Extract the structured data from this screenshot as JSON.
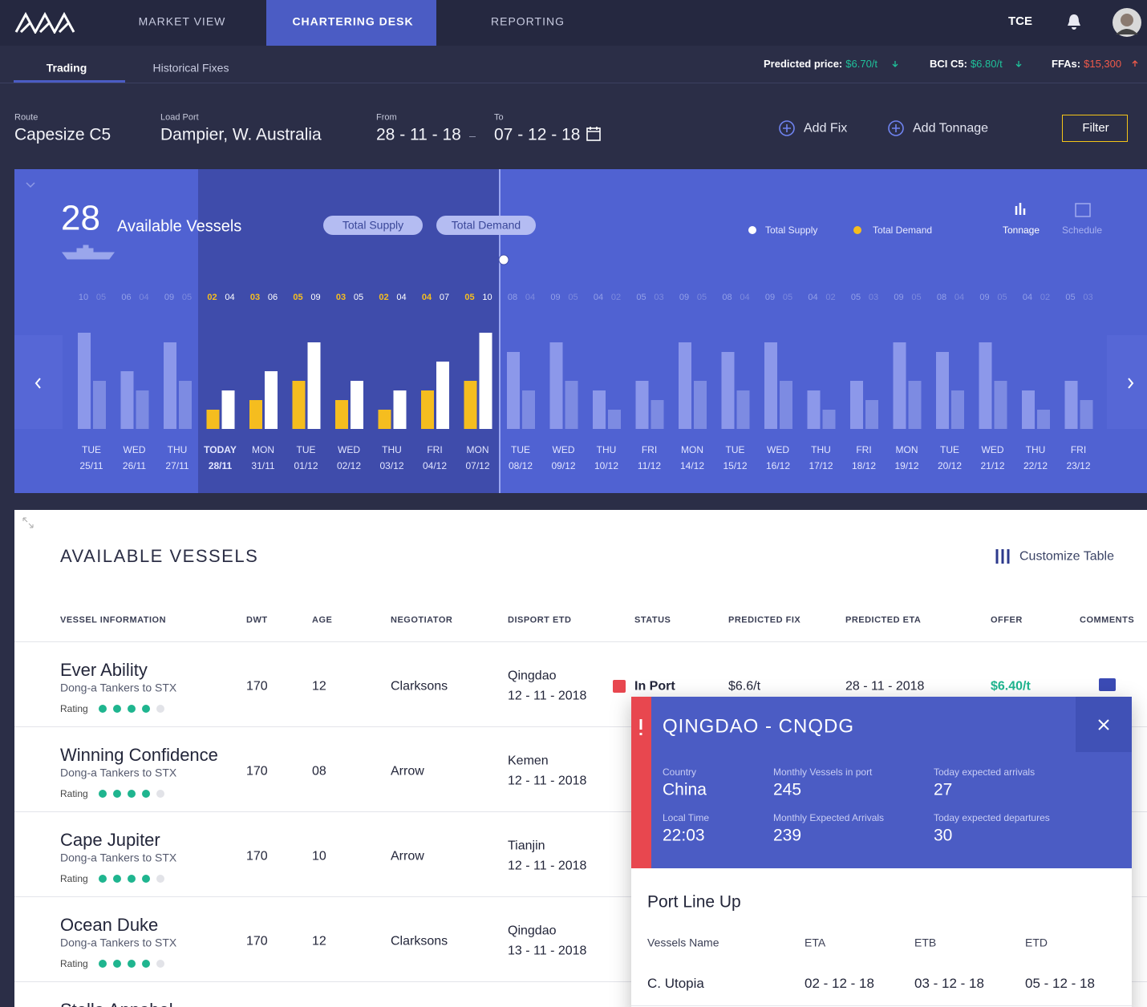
{
  "nav": {
    "tabs": [
      "MARKET VIEW",
      "CHARTERING DESK",
      "REPORTING"
    ],
    "tce": "TCE"
  },
  "subnav": {
    "tabs": [
      "Trading",
      "Historical Fixes"
    ],
    "prices": [
      {
        "label": "Predicted price:",
        "value": "$6.70/t"
      },
      {
        "label": "BCI C5:",
        "value": "$6.80/t"
      },
      {
        "label": "FFAs:",
        "value": "$15,300"
      }
    ]
  },
  "filters": {
    "route": {
      "label": "Route",
      "value": "Capesize C5"
    },
    "load_port": {
      "label": "Load Port",
      "value": "Dampier, W. Australia"
    },
    "from": {
      "label": "From",
      "value": "28 - 11 - 18"
    },
    "to": {
      "label": "To",
      "value": "07 - 12 - 18"
    },
    "add_fix": "Add Fix",
    "add_tonnage": "Add Tonnage",
    "filter": "Filter"
  },
  "supply_panel": {
    "count": "28",
    "count_label": "Available Vessels",
    "views": [
      "Tonnage",
      "Schedule"
    ],
    "chart": {
      "type": "grouped-bar",
      "categories": [
        "TUE",
        "WED",
        "THU",
        "TODAY",
        "MON",
        "TUE",
        "WED",
        "THU",
        "FRI",
        "MON",
        "TUE",
        "WED",
        "THU",
        "FRI",
        "MON",
        "TUE",
        "WED",
        "THU",
        "FRI",
        "MON",
        "TUE",
        "WED",
        "THU",
        "FRI"
      ],
      "dates": [
        "25/11",
        "26/11",
        "27/11",
        "28/11",
        "31/11",
        "01/12",
        "02/12",
        "03/12",
        "04/12",
        "07/12",
        "08/12",
        "09/12",
        "10/12",
        "11/12",
        "14/12",
        "15/12",
        "16/12",
        "17/12",
        "18/12",
        "19/12",
        "20/12",
        "21/12",
        "22/12",
        "23/12"
      ],
      "series": [
        {
          "name": "Total Supply",
          "color": "#ffffff",
          "values": [
            5,
            4,
            5,
            4,
            6,
            9,
            5,
            4,
            7,
            10,
            4,
            5,
            2,
            3,
            5,
            4,
            5,
            2,
            3,
            5,
            4,
            5,
            2,
            3
          ],
          "value_labels": [
            "05",
            "04",
            "05",
            "04",
            "06",
            "09",
            "05",
            "04",
            "07",
            "10",
            "04",
            "05",
            "02",
            "03",
            "05",
            "04",
            "05",
            "02",
            "03",
            "05",
            "04",
            "05",
            "02",
            "03"
          ]
        },
        {
          "name": "Total Demand",
          "color": "#f5bd1f",
          "values": [
            10,
            6,
            9,
            2,
            3,
            5,
            3,
            2,
            4,
            5,
            8,
            9,
            4,
            5,
            9,
            8,
            9,
            4,
            5,
            9,
            8,
            9,
            4,
            5
          ],
          "value_labels": [
            "10",
            "06",
            "09",
            "02",
            "03",
            "05",
            "03",
            "02",
            "04",
            "05",
            "08",
            "09",
            "04",
            "05",
            "09",
            "08",
            "09",
            "04",
            "05",
            "09",
            "08",
            "09",
            "04",
            "05"
          ]
        }
      ]
    }
  },
  "table": {
    "title": "AVAILABLE VESSELS",
    "customize": "Customize Table",
    "rating_label": "Rating",
    "columns": [
      "VESSEL INFORMATION",
      "DWT",
      "AGE",
      "NEGOTIATOR",
      "DISPORT ETD",
      "STATUS",
      "PREDICTED FIX",
      "PREDICTED ETA",
      "OFFER",
      "COMMENTS"
    ],
    "rows": [
      {
        "name": "Ever Ability",
        "owner": "Dong-a Tankers to STX",
        "rating": 4,
        "dwt": "170",
        "age": "12",
        "negotiator": "Clarksons",
        "disport": "Qingdao",
        "etd": "12 - 11 - 2018",
        "status": "In Port",
        "predicted_fix": "$6.6/t",
        "predicted_eta": "28 - 11 - 2018",
        "offer": "$6.40/t"
      },
      {
        "name": "Winning Confidence",
        "owner": "Dong-a Tankers to STX",
        "rating": 4,
        "dwt": "170",
        "age": "08",
        "negotiator": "Arrow",
        "disport": "Kemen",
        "etd": "12 - 11 - 2018"
      },
      {
        "name": "Cape Jupiter",
        "owner": "Dong-a Tankers to STX",
        "rating": 4,
        "dwt": "170",
        "age": "10",
        "negotiator": "Arrow",
        "disport": "Tianjin",
        "etd": "12 - 11 - 2018"
      },
      {
        "name": "Ocean Duke",
        "owner": "Dong-a Tankers to STX",
        "rating": 4,
        "dwt": "170",
        "age": "12",
        "negotiator": "Clarksons",
        "disport": "Qingdao",
        "etd": "13 - 11 - 2018"
      },
      {
        "name": "Stella Annabel"
      }
    ]
  },
  "port_popup": {
    "title": "QINGDAO - CNQDG",
    "stats": [
      {
        "label": "Country",
        "value": "China"
      },
      {
        "label": "Monthly Vessels in port",
        "value": "245"
      },
      {
        "label": "Today expected arrivals",
        "value": "27"
      },
      {
        "label": "Local Time",
        "value": "22:03"
      },
      {
        "label": "Monthly Expected Arrivals",
        "value": "239"
      },
      {
        "label": "Today expected departures",
        "value": "30"
      }
    ],
    "lineup_title": "Port Line Up",
    "columns": [
      "Vessels Name",
      "ETA",
      "ETB",
      "ETD"
    ],
    "rows": [
      [
        "C. Utopia",
        "02 - 12 - 18",
        "03 - 12 - 18",
        "05 - 12 - 18"
      ]
    ]
  }
}
